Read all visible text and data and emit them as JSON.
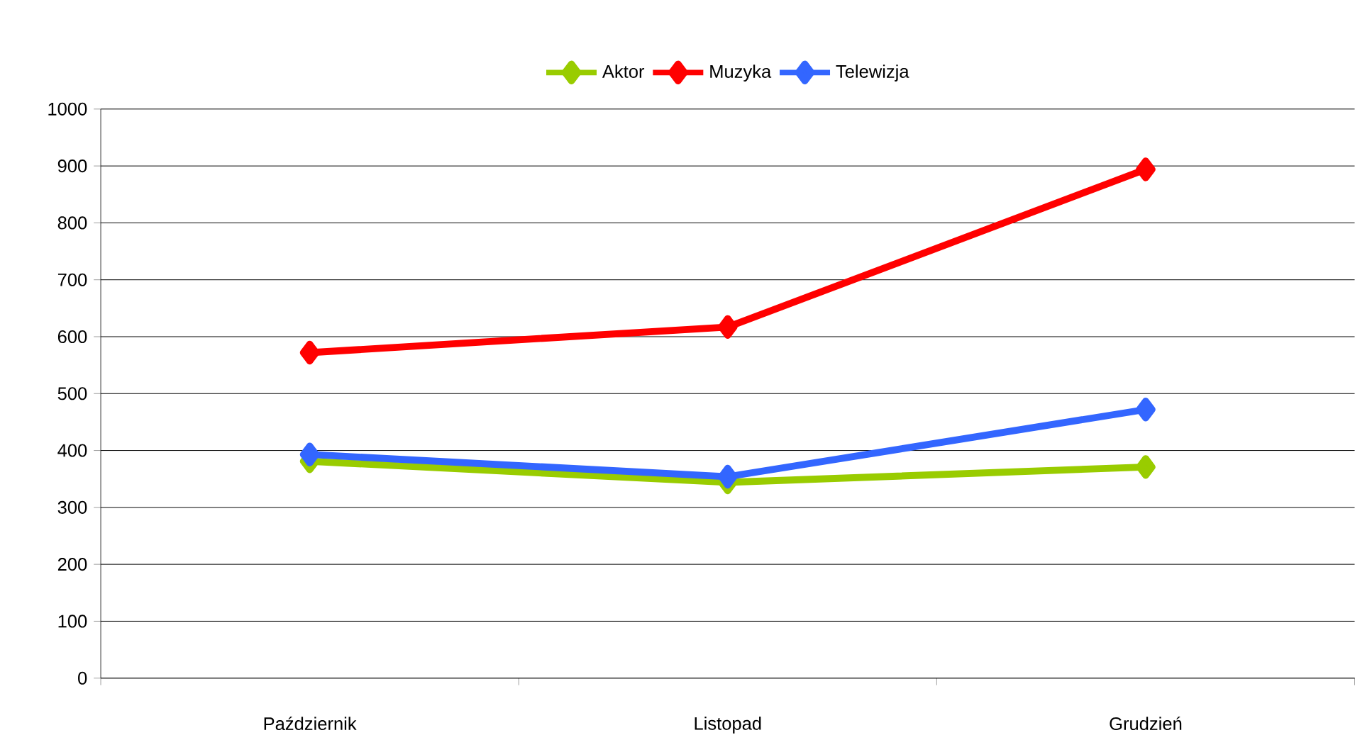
{
  "chart_data": {
    "type": "line",
    "categories": [
      "Październik",
      "Listopad",
      "Grudzień"
    ],
    "series": [
      {
        "name": "Aktor",
        "color": "#99cc00",
        "values": [
          381,
          344,
          371
        ]
      },
      {
        "name": "Muzyka",
        "color": "#ff0000",
        "values": [
          572,
          617,
          894
        ]
      },
      {
        "name": "Telewizja",
        "color": "#3366ff",
        "values": [
          393,
          354,
          472
        ]
      }
    ],
    "ylim": [
      0,
      1000
    ],
    "yticks": [
      0,
      100,
      200,
      300,
      400,
      500,
      600,
      700,
      800,
      900,
      1000
    ],
    "grid": "y",
    "legend": "top",
    "marker": "diamond",
    "line_style": "solid"
  }
}
